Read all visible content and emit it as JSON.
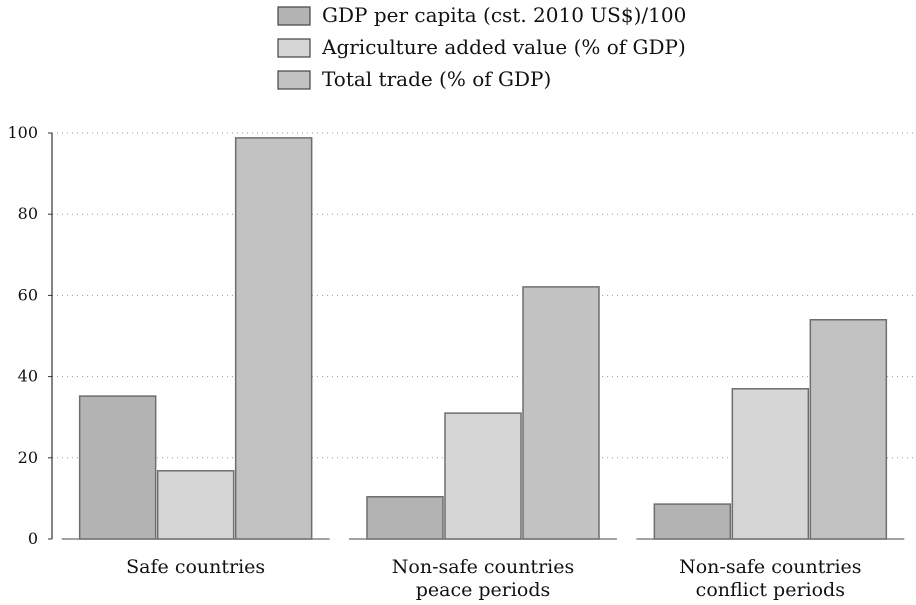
{
  "chart_data": {
    "type": "bar",
    "categories": [
      [
        "Safe countries"
      ],
      [
        "Non-safe countries",
        "peace periods"
      ],
      [
        "Non-safe countries",
        "conflict periods"
      ]
    ],
    "series": [
      {
        "name": "GDP per capita (cst. 2010 US$)/100",
        "values": [
          35.2,
          10.4,
          8.6
        ],
        "color": "#b3b3b3"
      },
      {
        "name": "Agriculture added value (% of GDP)",
        "values": [
          16.8,
          31.0,
          37.0
        ],
        "color": "#d6d6d6"
      },
      {
        "name": "Total trade (% of GDP)",
        "values": [
          98.8,
          62.1,
          54.0
        ],
        "color": "#c2c2c2"
      }
    ],
    "yticks": [
      0,
      20,
      40,
      60,
      80,
      100
    ],
    "ylim": [
      0,
      100
    ],
    "grid": true,
    "grid_style": "dotted",
    "legend_position": "top-center"
  }
}
